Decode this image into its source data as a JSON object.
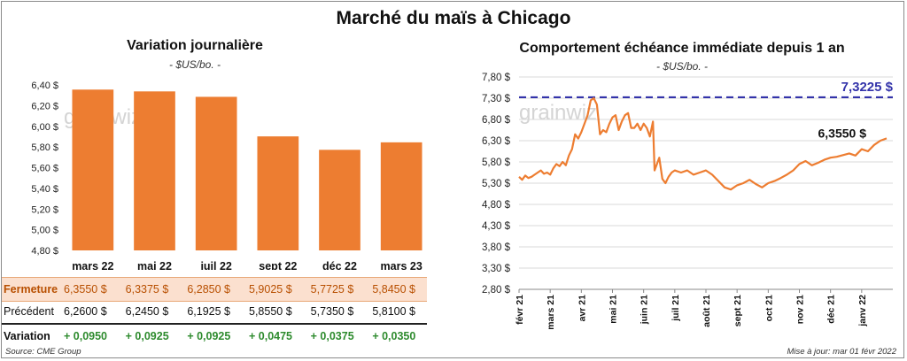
{
  "header": {
    "title": "Marché du maïs à Chicago"
  },
  "left_chart": {
    "title": "Variation  journalière",
    "subtitle": "- $US/bo. -"
  },
  "right_chart": {
    "title": "Comportement  échéance immédiate depuis 1 an",
    "subtitle": "- $US/bo. -"
  },
  "watermark": "grainwiz",
  "table": {
    "rows": [
      {
        "label": "Fermeture",
        "values": [
          "6,3550  $",
          "6,3375  $",
          "6,2850  $",
          "5,9025  $",
          "5,7725  $",
          "5,8450  $"
        ]
      },
      {
        "label": "Précédent",
        "values": [
          "6,2600  $",
          "6,2450  $",
          "6,1925  $",
          "5,8550  $",
          "5,7350  $",
          "5,8100  $"
        ]
      },
      {
        "label": "Variation",
        "values": [
          "+ 0,0950",
          "+ 0,0925",
          "+ 0,0925",
          "+ 0,0475",
          "+ 0,0375",
          "+ 0,0350"
        ]
      }
    ]
  },
  "footer": {
    "source": "Source: CME Group",
    "updated": "Mise à jour: mar 01 févr 2022"
  },
  "colors": {
    "bar": "#ed7d31",
    "line": "#ed7d31",
    "ref_line": "#3333aa",
    "fermeture_bg": "#fbe0cf",
    "positive": "#2e8b2e"
  },
  "chart_data": [
    {
      "type": "bar",
      "title": "Variation  journalière",
      "ylabel": "- $US/bo. -",
      "categories": [
        "mars 22",
        "mai 22",
        "juil 22",
        "sept 22",
        "déc 22",
        "mars 23"
      ],
      "values": [
        6.355,
        6.3375,
        6.285,
        5.9025,
        5.7725,
        5.845
      ],
      "ylim": [
        4.8,
        6.4
      ],
      "yticks": [
        4.8,
        5.0,
        5.2,
        5.4,
        5.6,
        5.8,
        6.0,
        6.2,
        6.4
      ],
      "ytick_labels": [
        "4,80 $",
        "5,00 $",
        "5,20 $",
        "5,40 $",
        "5,60 $",
        "5,80 $",
        "6,00 $",
        "6,20 $",
        "6,40 $"
      ]
    },
    {
      "type": "line",
      "title": "Comportement  échéance immédiate depuis 1 an",
      "ylabel": "- $US/bo. -",
      "ylim": [
        2.8,
        7.8
      ],
      "yticks": [
        2.8,
        3.3,
        3.8,
        4.3,
        4.8,
        5.3,
        5.8,
        6.3,
        6.8,
        7.3,
        7.8
      ],
      "ytick_labels": [
        "2,80 $",
        "3,30 $",
        "3,80 $",
        "4,30 $",
        "4,80 $",
        "5,30 $",
        "5,80 $",
        "6,30 $",
        "6,80 $",
        "7,30 $",
        "7,80 $"
      ],
      "x_labels": [
        "févr 21",
        "mars 21",
        "avr 21",
        "mai 21",
        "juin 21",
        "juil 21",
        "août 21",
        "sept 21",
        "oct 21",
        "nov 21",
        "déc 21",
        "janv 22"
      ],
      "x_range": [
        0,
        12
      ],
      "reference": {
        "value": 7.3225,
        "label": "7,3225 $"
      },
      "last_label": "6,3550 $",
      "x": [
        0,
        0.1,
        0.2,
        0.3,
        0.4,
        0.5,
        0.6,
        0.7,
        0.8,
        0.9,
        1.0,
        1.1,
        1.2,
        1.3,
        1.4,
        1.5,
        1.6,
        1.7,
        1.8,
        1.9,
        2.0,
        2.1,
        2.2,
        2.3,
        2.4,
        2.5,
        2.6,
        2.7,
        2.8,
        2.9,
        3.0,
        3.1,
        3.2,
        3.3,
        3.4,
        3.5,
        3.6,
        3.7,
        3.8,
        3.9,
        4.0,
        4.1,
        4.2,
        4.3,
        4.35,
        4.5,
        4.6,
        4.7,
        4.8,
        4.9,
        5.0,
        5.2,
        5.4,
        5.6,
        5.8,
        6.0,
        6.2,
        6.4,
        6.6,
        6.8,
        7.0,
        7.2,
        7.4,
        7.6,
        7.8,
        8.0,
        8.2,
        8.4,
        8.6,
        8.8,
        9.0,
        9.2,
        9.4,
        9.6,
        9.8,
        10.0,
        10.2,
        10.4,
        10.6,
        10.8,
        11.0,
        11.2,
        11.4,
        11.6,
        11.8
      ],
      "y": [
        5.45,
        5.38,
        5.48,
        5.42,
        5.45,
        5.5,
        5.55,
        5.6,
        5.52,
        5.55,
        5.5,
        5.65,
        5.75,
        5.7,
        5.8,
        5.72,
        5.95,
        6.1,
        6.45,
        6.35,
        6.5,
        6.7,
        6.9,
        7.25,
        7.3,
        7.15,
        6.45,
        6.55,
        6.5,
        6.7,
        6.85,
        6.9,
        6.55,
        6.75,
        6.9,
        6.95,
        6.6,
        6.6,
        6.7,
        6.55,
        6.7,
        6.6,
        6.4,
        6.75,
        5.6,
        5.9,
        5.4,
        5.3,
        5.45,
        5.55,
        5.6,
        5.55,
        5.6,
        5.5,
        5.55,
        5.6,
        5.5,
        5.35,
        5.2,
        5.15,
        5.25,
        5.3,
        5.38,
        5.28,
        5.2,
        5.3,
        5.35,
        5.42,
        5.5,
        5.6,
        5.75,
        5.82,
        5.72,
        5.78,
        5.85,
        5.9,
        5.92,
        5.96,
        6.0,
        5.95,
        6.1,
        6.05,
        6.2,
        6.3,
        6.355
      ]
    }
  ]
}
